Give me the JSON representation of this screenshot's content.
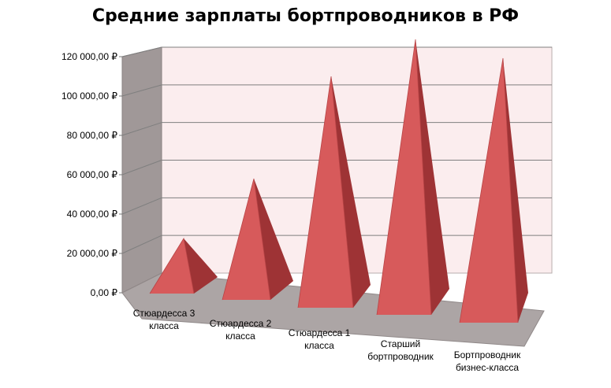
{
  "chart_data": {
    "type": "bar",
    "title": "Средние зарплаты бортпроводников в РФ",
    "xlabel": "",
    "ylabel": "",
    "ylim": [
      0,
      120000
    ],
    "y_ticks": [
      0,
      20000,
      40000,
      60000,
      80000,
      100000,
      120000
    ],
    "y_tick_labels": [
      "0,00 ₽",
      "20 000,00 ₽",
      "40 000,00 ₽",
      "60 000,00 ₽",
      "80 000,00 ₽",
      "100 000,00 ₽",
      "120 000,00 ₽"
    ],
    "grid": true,
    "legend": "none",
    "categories": [
      [
        "Стюардесса 3",
        "класса"
      ],
      [
        "Стюардесса 2",
        "класса"
      ],
      [
        "Стюардесса 1",
        "класса"
      ],
      [
        "Старший",
        "бортпроводник"
      ],
      [
        "Бортпроводник",
        "бизнес-класса"
      ]
    ],
    "values": [
      25000,
      55000,
      105000,
      125000,
      120000
    ],
    "style": "3d-pyramid",
    "colors": {
      "face_light": "#D75A5B",
      "face_dark": "#9E3335",
      "back_wall": "#FBEDEE",
      "side_wall": "#A09898",
      "floor": "#ACA5A5",
      "grid": "#7F7F7F"
    }
  }
}
